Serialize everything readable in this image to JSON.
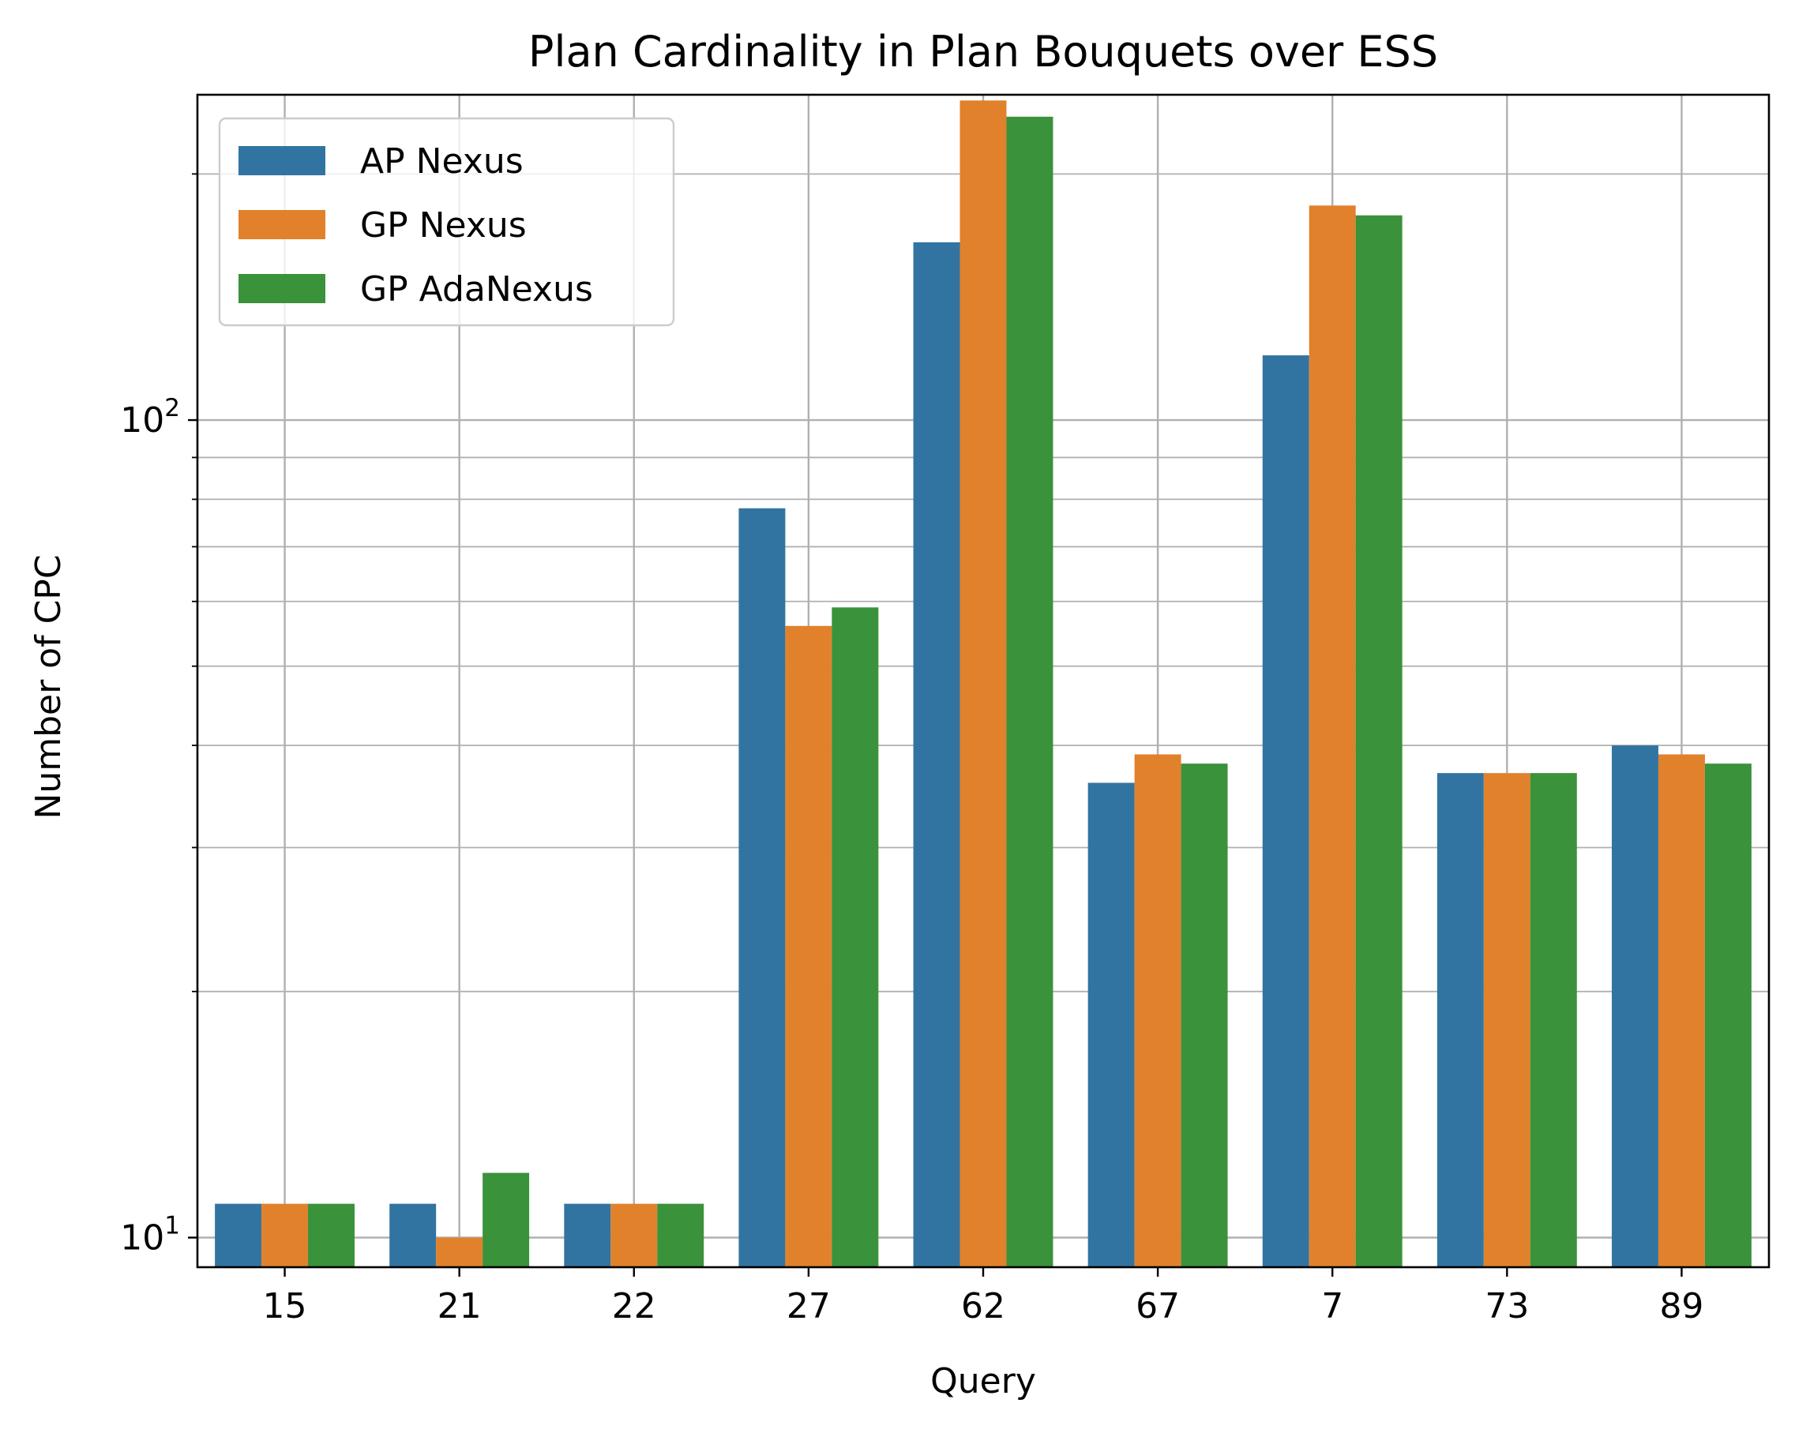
{
  "chart_data": {
    "type": "bar",
    "title": "Plan Cardinality in Plan Bouquets over ESS",
    "xlabel": "Query",
    "ylabel": "Number of CPC",
    "yscale": "log",
    "ylim": [
      9.2,
      250
    ],
    "yticks_major": [
      {
        "base": "10",
        "exp": "1",
        "value": 10
      },
      {
        "base": "10",
        "exp": "2",
        "value": 100
      }
    ],
    "categories": [
      "15",
      "21",
      "22",
      "27",
      "62",
      "67",
      "7",
      "73",
      "89"
    ],
    "series": [
      {
        "name": "AP Nexus",
        "color": "#3274a1",
        "values": [
          11,
          11,
          11,
          78,
          165,
          36,
          120,
          37,
          40
        ]
      },
      {
        "name": "GP Nexus",
        "color": "#e1812c",
        "values": [
          11,
          10,
          11,
          56,
          246,
          39,
          183,
          37,
          39
        ]
      },
      {
        "name": "GP AdaNexus",
        "color": "#3a923a",
        "values": [
          11,
          12,
          11,
          59,
          235,
          38,
          178,
          37,
          38
        ]
      }
    ],
    "grid": true,
    "legend_position": "top-left"
  }
}
